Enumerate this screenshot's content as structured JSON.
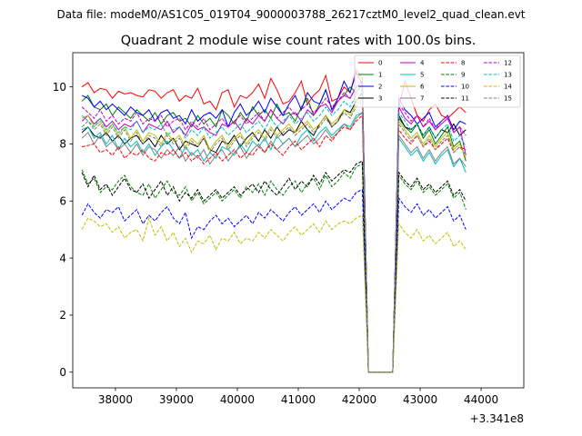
{
  "chart_data": {
    "type": "line",
    "suptitle": "Data file: modeM0/AS1C05_019T04_9000003788_26217cztM0_level2_quad_clean.evt",
    "title": "Quadrant 2 module wise count rates with 100.0s bins.",
    "xlabel": "",
    "ylabel": "",
    "offset_label": "+3.341e8",
    "xlim": [
      37300,
      44700
    ],
    "ylim": [
      -0.55,
      11.2
    ],
    "xticks": [
      38000,
      39000,
      40000,
      41000,
      42000,
      43000,
      44000
    ],
    "xtick_labels": [
      "38000",
      "39000",
      "40000",
      "41000",
      "42000",
      "43000",
      "44000"
    ],
    "yticks": [
      0,
      2,
      4,
      6,
      8,
      10
    ],
    "ytick_labels": [
      "0",
      "2",
      "4",
      "6",
      "8",
      "10"
    ],
    "grid": false,
    "legend": "top-right",
    "x_start": 37450,
    "x_step": 100,
    "series": [
      {
        "name": "0",
        "color": "#ff0000",
        "dash": "solid",
        "values": [
          10.0,
          10.15,
          9.8,
          9.95,
          9.9,
          9.6,
          9.85,
          9.75,
          9.8,
          9.7,
          9.65,
          9.9,
          9.85,
          9.6,
          9.8,
          9.9,
          9.5,
          9.7,
          9.6,
          9.95,
          9.4,
          9.5,
          9.2,
          9.8,
          9.9,
          9.3,
          9.7,
          9.6,
          9.8,
          10.1,
          9.6,
          10.3,
          9.9,
          9.4,
          9.5,
          9.8,
          10.2,
          9.4,
          9.7,
          9.9,
          10.4,
          9.5,
          9.6,
          10.0,
          9.8,
          10.6,
          10.3,
          0.0,
          0.0,
          0.0,
          0.0,
          0.0,
          9.3,
          10.2,
          9.6,
          9.0,
          8.8,
          9.2,
          9.4,
          9.0,
          8.9,
          9.1,
          9.3,
          9.1
        ]
      },
      {
        "name": "1",
        "color": "#008000",
        "dash": "solid",
        "values": [
          9.5,
          9.7,
          9.3,
          9.2,
          9.4,
          9.0,
          9.3,
          9.1,
          8.9,
          9.2,
          9.0,
          8.8,
          9.1,
          8.7,
          9.0,
          9.1,
          8.8,
          8.9,
          8.6,
          9.0,
          8.7,
          8.9,
          8.6,
          9.2,
          9.0,
          8.7,
          9.1,
          8.8,
          9.3,
          9.0,
          9.2,
          8.9,
          9.4,
          9.0,
          9.1,
          8.8,
          9.3,
          9.6,
          9.0,
          9.4,
          9.9,
          9.2,
          9.5,
          9.7,
          10.0,
          9.8,
          10.1,
          0.0,
          0.0,
          0.0,
          0.0,
          0.0,
          8.9,
          8.6,
          8.4,
          8.7,
          8.2,
          8.5,
          8.0,
          8.3,
          8.6,
          7.9,
          8.1,
          7.4
        ]
      },
      {
        "name": "2",
        "color": "#0000ff",
        "dash": "solid",
        "values": [
          9.7,
          9.6,
          9.3,
          9.5,
          9.2,
          9.4,
          9.2,
          9.0,
          9.3,
          9.1,
          9.0,
          9.2,
          8.8,
          9.1,
          9.2,
          8.9,
          9.0,
          8.7,
          9.2,
          8.8,
          9.0,
          9.1,
          8.9,
          9.2,
          8.6,
          9.1,
          9.4,
          9.0,
          9.2,
          9.5,
          9.1,
          9.6,
          9.3,
          9.0,
          9.4,
          9.7,
          9.2,
          9.8,
          9.5,
          9.4,
          9.9,
          9.2,
          9.6,
          10.2,
          9.8,
          10.5,
          10.1,
          0.0,
          0.0,
          0.0,
          0.0,
          0.0,
          9.6,
          9.2,
          9.0,
          8.7,
          8.9,
          9.1,
          8.6,
          8.8,
          9.0,
          8.5,
          8.8,
          8.7
        ]
      },
      {
        "name": "3",
        "color": "#000000",
        "dash": "solid",
        "values": [
          8.4,
          8.6,
          8.3,
          8.2,
          8.4,
          8.1,
          8.3,
          8.0,
          8.2,
          8.3,
          8.0,
          8.2,
          7.9,
          8.3,
          8.0,
          8.2,
          7.8,
          8.1,
          8.0,
          7.9,
          8.2,
          7.8,
          7.7,
          8.1,
          8.0,
          8.3,
          7.9,
          8.2,
          8.4,
          8.1,
          8.5,
          8.2,
          8.6,
          8.3,
          8.5,
          8.4,
          8.8,
          8.5,
          8.3,
          8.7,
          9.0,
          8.6,
          8.8,
          9.2,
          9.1,
          9.5,
          9.8,
          0.0,
          0.0,
          0.0,
          0.0,
          0.0,
          9.0,
          8.6,
          8.5,
          8.7,
          8.3,
          8.6,
          8.2,
          8.5,
          8.4,
          8.7,
          8.3,
          8.5
        ]
      },
      {
        "name": "4",
        "color": "#bf00bf",
        "dash": "solid",
        "values": [
          8.8,
          9.0,
          8.7,
          8.9,
          8.6,
          8.8,
          8.5,
          8.7,
          8.6,
          8.8,
          8.4,
          8.7,
          8.6,
          8.5,
          8.8,
          8.4,
          8.6,
          8.3,
          8.7,
          8.5,
          8.6,
          8.4,
          8.3,
          8.7,
          8.6,
          8.8,
          8.5,
          8.9,
          8.7,
          9.0,
          8.8,
          9.2,
          8.9,
          8.7,
          9.0,
          9.1,
          8.8,
          9.2,
          9.0,
          9.3,
          9.4,
          9.1,
          9.5,
          9.7,
          9.6,
          10.0,
          10.2,
          0.0,
          0.0,
          0.0,
          0.0,
          0.0,
          9.3,
          8.9,
          8.7,
          9.0,
          8.6,
          8.8,
          8.5,
          8.7,
          8.9,
          8.4,
          8.6,
          7.6
        ]
      },
      {
        "name": "5",
        "color": "#00bfbf",
        "dash": "solid",
        "values": [
          8.5,
          8.6,
          8.2,
          8.4,
          8.0,
          8.3,
          7.8,
          8.2,
          7.9,
          8.1,
          7.7,
          8.0,
          7.6,
          7.9,
          8.1,
          7.8,
          7.5,
          7.9,
          7.6,
          7.8,
          7.4,
          7.7,
          7.5,
          7.9,
          7.8,
          7.6,
          8.0,
          7.7,
          8.1,
          7.9,
          8.2,
          7.8,
          8.3,
          8.0,
          8.2,
          7.9,
          8.3,
          8.5,
          8.1,
          8.4,
          8.6,
          8.3,
          8.5,
          8.7,
          8.6,
          9.0,
          9.1,
          0.0,
          0.0,
          0.0,
          0.0,
          0.0,
          8.2,
          7.9,
          7.6,
          7.8,
          7.4,
          7.7,
          7.3,
          7.6,
          7.8,
          7.2,
          7.5,
          7.0
        ]
      },
      {
        "name": "6",
        "color": "#bfbf00",
        "dash": "solid",
        "values": [
          8.9,
          9.0,
          8.6,
          8.8,
          8.4,
          8.7,
          8.3,
          8.6,
          8.2,
          8.5,
          8.1,
          8.4,
          8.3,
          8.0,
          8.4,
          8.1,
          8.3,
          7.9,
          8.2,
          8.0,
          8.3,
          7.8,
          8.1,
          8.3,
          7.9,
          8.2,
          8.4,
          8.0,
          8.3,
          8.5,
          8.2,
          8.6,
          8.3,
          8.5,
          8.7,
          8.4,
          8.6,
          8.8,
          8.5,
          8.7,
          9.0,
          8.7,
          8.9,
          9.2,
          9.0,
          9.4,
          9.6,
          0.0,
          0.0,
          0.0,
          0.0,
          0.0,
          8.8,
          8.5,
          8.2,
          8.4,
          8.0,
          8.3,
          7.9,
          8.2,
          8.4,
          7.8,
          8.0,
          7.5
        ]
      },
      {
        "name": "7",
        "color": "#808080",
        "dash": "solid",
        "values": [
          8.2,
          8.4,
          8.0,
          8.3,
          7.9,
          8.1,
          7.8,
          8.0,
          7.7,
          8.0,
          7.6,
          7.9,
          7.8,
          7.5,
          7.8,
          7.6,
          7.9,
          7.4,
          7.7,
          7.5,
          7.8,
          7.3,
          7.6,
          7.8,
          7.4,
          7.7,
          7.9,
          7.5,
          7.8,
          8.0,
          7.7,
          8.1,
          7.8,
          8.0,
          8.2,
          7.9,
          8.1,
          8.3,
          8.0,
          8.2,
          8.5,
          8.2,
          8.4,
          8.7,
          8.5,
          8.9,
          9.1,
          0.0,
          0.0,
          0.0,
          0.0,
          0.0,
          8.3,
          8.0,
          7.7,
          7.9,
          7.5,
          7.8,
          7.4,
          7.7,
          7.9,
          7.3,
          7.5,
          7.2
        ]
      },
      {
        "name": "8",
        "color": "#ff0000",
        "dash": "dashed",
        "values": [
          7.9,
          7.95,
          8.0,
          7.7,
          7.8,
          7.6,
          7.9,
          7.5,
          7.7,
          7.6,
          7.8,
          7.5,
          7.4,
          7.7,
          7.6,
          7.8,
          7.5,
          7.7,
          7.4,
          7.6,
          7.3,
          7.5,
          7.7,
          7.4,
          7.6,
          7.8,
          7.5,
          7.7,
          7.6,
          7.9,
          7.7,
          8.0,
          7.8,
          7.6,
          7.9,
          8.1,
          7.8,
          8.0,
          8.2,
          7.9,
          8.3,
          8.1,
          8.4,
          8.6,
          8.5,
          8.8,
          9.0,
          0.0,
          0.0,
          0.0,
          0.0,
          0.0,
          8.5,
          8.2,
          8.0,
          8.3,
          7.9,
          8.1,
          7.8,
          8.0,
          8.2,
          7.7,
          7.9,
          7.8
        ]
      },
      {
        "name": "9",
        "color": "#008000",
        "dash": "dashed",
        "values": [
          7.1,
          6.6,
          6.8,
          6.3,
          6.5,
          6.4,
          6.7,
          6.9,
          6.5,
          6.3,
          6.2,
          6.6,
          6.1,
          6.4,
          6.7,
          6.3,
          6.2,
          6.5,
          6.0,
          6.3,
          5.9,
          6.1,
          6.3,
          6.0,
          6.2,
          6.4,
          6.1,
          6.5,
          6.3,
          6.6,
          6.2,
          6.7,
          6.4,
          6.2,
          6.5,
          6.7,
          6.3,
          6.6,
          6.8,
          6.4,
          6.9,
          6.5,
          6.7,
          7.0,
          6.8,
          7.2,
          7.3,
          0.0,
          0.0,
          0.0,
          0.0,
          0.0,
          6.9,
          6.6,
          6.4,
          6.7,
          6.3,
          6.5,
          6.2,
          6.4,
          6.6,
          6.1,
          6.3,
          5.7
        ]
      },
      {
        "name": "10",
        "color": "#0000ff",
        "dash": "dashed",
        "values": [
          5.5,
          5.9,
          5.6,
          5.4,
          5.7,
          5.6,
          5.8,
          5.3,
          5.5,
          5.7,
          5.2,
          5.5,
          5.3,
          5.6,
          5.8,
          5.4,
          5.2,
          5.6,
          4.7,
          5.1,
          5.0,
          5.3,
          5.5,
          5.2,
          5.4,
          5.1,
          5.3,
          5.5,
          5.2,
          5.6,
          5.4,
          5.7,
          5.5,
          5.3,
          5.6,
          5.8,
          5.5,
          5.7,
          5.9,
          5.6,
          6.0,
          5.7,
          5.9,
          6.1,
          6.0,
          6.3,
          6.4,
          0.0,
          0.0,
          0.0,
          0.0,
          0.0,
          6.1,
          5.8,
          5.6,
          5.9,
          5.5,
          5.7,
          5.4,
          5.6,
          5.8,
          5.3,
          5.5,
          5.0
        ]
      },
      {
        "name": "11",
        "color": "#000000",
        "dash": "dashed",
        "values": [
          7.0,
          6.5,
          6.9,
          6.4,
          6.6,
          6.2,
          6.5,
          6.8,
          6.4,
          6.3,
          6.6,
          6.1,
          6.4,
          6.7,
          6.2,
          6.5,
          6.0,
          6.3,
          6.1,
          6.4,
          6.0,
          6.2,
          6.4,
          6.1,
          6.3,
          6.5,
          6.2,
          6.4,
          6.6,
          6.3,
          6.7,
          6.4,
          6.2,
          6.5,
          6.8,
          6.4,
          6.7,
          6.5,
          6.9,
          6.6,
          7.0,
          6.7,
          6.9,
          7.1,
          7.0,
          7.3,
          7.4,
          0.0,
          0.0,
          0.0,
          0.0,
          0.0,
          7.0,
          6.7,
          6.5,
          6.8,
          6.4,
          6.6,
          6.3,
          6.5,
          6.7,
          6.2,
          6.4,
          6.0
        ]
      },
      {
        "name": "12",
        "color": "#bf00bf",
        "dash": "dashed",
        "values": [
          9.3,
          9.1,
          8.9,
          9.2,
          8.8,
          9.0,
          8.7,
          8.9,
          8.8,
          9.1,
          8.7,
          8.9,
          8.8,
          9.0,
          8.6,
          8.8,
          8.9,
          8.5,
          8.8,
          8.6,
          8.9,
          8.5,
          8.7,
          8.9,
          8.6,
          8.8,
          9.0,
          8.7,
          8.9,
          9.1,
          8.8,
          9.2,
          8.9,
          9.1,
          9.3,
          9.0,
          9.2,
          9.4,
          9.1,
          9.3,
          9.6,
          9.3,
          9.5,
          9.8,
          9.6,
          10.0,
          10.2,
          0.0,
          0.0,
          0.0,
          0.0,
          0.0,
          9.4,
          9.1,
          8.8,
          9.0,
          8.6,
          8.9,
          8.5,
          8.8,
          9.0,
          8.4,
          8.6,
          8.3
        ]
      },
      {
        "name": "13",
        "color": "#00bfbf",
        "dash": "dashed",
        "values": [
          9.0,
          8.8,
          8.6,
          8.9,
          8.5,
          8.7,
          8.4,
          8.6,
          8.5,
          8.8,
          8.4,
          8.6,
          8.5,
          8.7,
          8.3,
          8.5,
          8.6,
          8.2,
          8.5,
          8.3,
          8.6,
          8.2,
          8.4,
          8.6,
          8.3,
          8.5,
          8.7,
          8.4,
          8.6,
          8.8,
          8.5,
          8.9,
          8.6,
          8.8,
          9.0,
          8.7,
          8.9,
          9.1,
          8.8,
          9.0,
          9.3,
          9.0,
          9.2,
          9.5,
          9.3,
          9.7,
          9.9,
          0.0,
          0.0,
          0.0,
          0.0,
          0.0,
          9.1,
          8.8,
          8.5,
          8.7,
          8.3,
          8.6,
          8.2,
          8.5,
          8.7,
          8.1,
          8.3,
          7.9
        ]
      },
      {
        "name": "14",
        "color": "#bfbf00",
        "dash": "dashed",
        "values": [
          5.0,
          5.4,
          5.3,
          5.1,
          5.2,
          4.9,
          5.1,
          4.7,
          4.9,
          5.0,
          4.6,
          5.4,
          4.8,
          5.1,
          4.6,
          4.9,
          4.4,
          4.7,
          4.2,
          4.6,
          4.5,
          4.8,
          4.3,
          4.7,
          4.6,
          4.9,
          4.5,
          4.7,
          4.6,
          4.9,
          4.7,
          5.0,
          4.8,
          4.6,
          4.9,
          5.1,
          4.8,
          5.0,
          5.2,
          4.9,
          5.3,
          5.0,
          5.2,
          5.3,
          5.2,
          5.4,
          5.5,
          0.0,
          0.0,
          0.0,
          0.0,
          0.0,
          5.2,
          4.9,
          4.7,
          5.0,
          4.6,
          4.8,
          4.5,
          4.7,
          4.9,
          4.4,
          4.6,
          4.3
        ]
      },
      {
        "name": "15",
        "color": "#808080",
        "dash": "dashed",
        "values": [
          8.6,
          8.8,
          8.5,
          8.7,
          8.3,
          8.6,
          8.2,
          8.5,
          8.1,
          8.4,
          8.0,
          8.3,
          8.2,
          7.9,
          8.3,
          8.0,
          8.2,
          7.8,
          8.1,
          7.9,
          8.2,
          7.7,
          8.0,
          8.2,
          7.8,
          8.1,
          8.3,
          7.9,
          8.2,
          8.4,
          8.1,
          8.5,
          8.2,
          8.4,
          8.6,
          8.3,
          8.5,
          8.7,
          8.4,
          8.6,
          8.9,
          8.6,
          8.8,
          9.1,
          8.9,
          9.3,
          9.5,
          0.0,
          0.0,
          0.0,
          0.0,
          0.0,
          8.7,
          8.4,
          8.1,
          8.3,
          7.9,
          8.2,
          7.8,
          8.1,
          8.3,
          7.7,
          7.9,
          7.6
        ]
      }
    ]
  }
}
